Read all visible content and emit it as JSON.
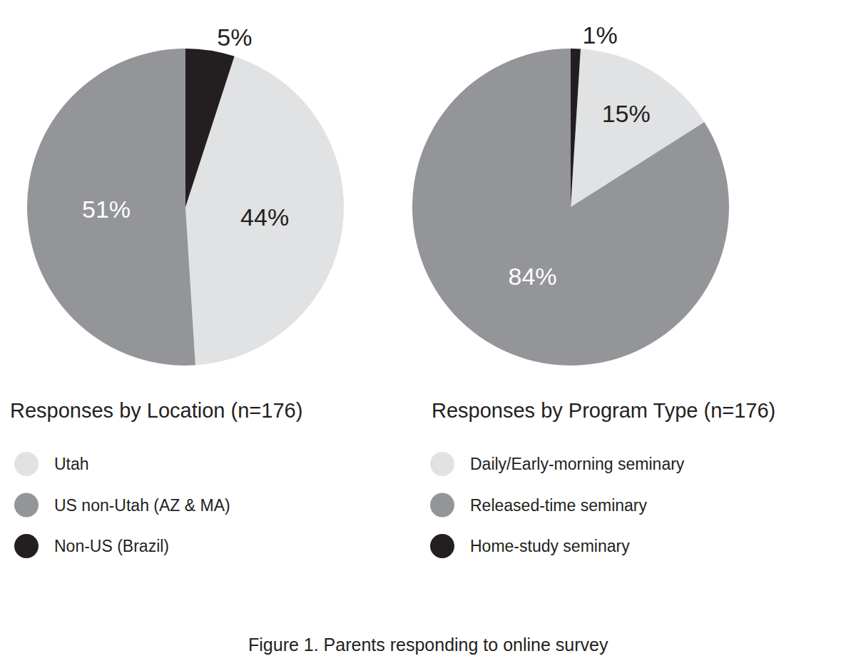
{
  "caption": "Figure 1. Parents responding to online survey",
  "chart_data": [
    {
      "type": "pie",
      "title": "Responses by Location (n=176)",
      "categories": [
        "Utah",
        "US non-Utah (AZ & MA)",
        "Non-US (Brazil)"
      ],
      "values": [
        44,
        51,
        5
      ],
      "value_labels": [
        "44%",
        "51%",
        "5%"
      ],
      "colors": [
        "#e1e2e3",
        "#939598",
        "#231f20"
      ],
      "data_labels": true,
      "legend": "bottom"
    },
    {
      "type": "pie",
      "title": "Responses by Program Type (n=176)",
      "categories": [
        "Daily/Early-morning seminary",
        "Released-time seminary",
        "Home-study seminary"
      ],
      "values": [
        15,
        84,
        1
      ],
      "value_labels": [
        "15%",
        "84%",
        "1%"
      ],
      "colors": [
        "#e1e2e3",
        "#939598",
        "#231f20"
      ],
      "data_labels": true,
      "legend": "bottom"
    }
  ]
}
